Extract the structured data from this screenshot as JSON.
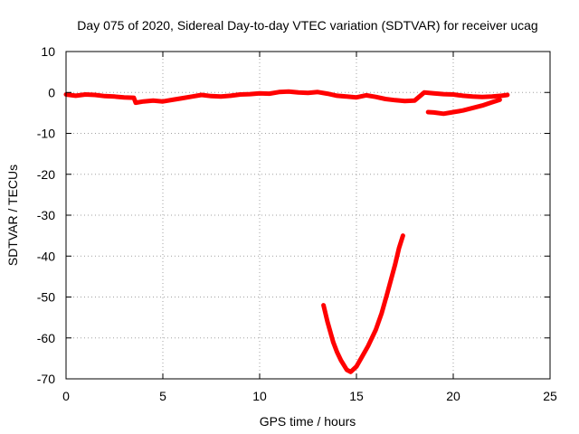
{
  "chart_data": {
    "type": "line",
    "title": "Day 075 of 2020, Sidereal Day-to-day VTEC variation (SDTVAR) for receiver ucag",
    "xlabel": "GPS time / hours",
    "ylabel": "SDTVAR / TECUs",
    "xlim": [
      0,
      25
    ],
    "ylim": [
      -70,
      10
    ],
    "xticks": [
      0,
      5,
      10,
      15,
      20,
      25
    ],
    "yticks": [
      -70,
      -60,
      -50,
      -40,
      -30,
      -20,
      -10,
      0,
      10
    ],
    "grid": true,
    "series": [
      {
        "name": "main-band",
        "color": "#ff0000",
        "x": [
          0.0,
          0.5,
          1.0,
          1.5,
          2.0,
          2.5,
          3.0,
          3.5,
          3.6,
          4.0,
          4.5,
          5.0,
          5.5,
          6.0,
          6.5,
          7.0,
          7.5,
          8.0,
          8.5,
          9.0,
          9.5,
          10.0,
          10.5,
          11.0,
          11.5,
          12.0,
          12.5,
          13.0,
          13.5,
          14.0,
          14.5,
          15.0,
          15.5,
          16.0,
          16.5,
          17.0,
          17.5,
          18.0,
          18.5,
          19.0,
          19.5,
          20.0,
          20.5,
          21.0,
          21.5,
          22.0,
          22.5,
          22.8
        ],
        "y": [
          -0.5,
          -0.8,
          -0.5,
          -0.6,
          -0.9,
          -1.0,
          -1.2,
          -1.3,
          -2.5,
          -2.2,
          -2.0,
          -2.2,
          -1.8,
          -1.4,
          -1.0,
          -0.6,
          -0.9,
          -1.0,
          -0.8,
          -0.5,
          -0.4,
          -0.2,
          -0.3,
          0.1,
          0.2,
          0.0,
          -0.1,
          0.1,
          -0.3,
          -0.8,
          -1.0,
          -1.2,
          -0.7,
          -1.1,
          -1.6,
          -1.9,
          -2.1,
          -2.0,
          0.0,
          -0.2,
          -0.4,
          -0.5,
          -0.8,
          -1.0,
          -1.1,
          -1.0,
          -0.8,
          -0.6
        ]
      },
      {
        "name": "lower-band",
        "color": "#ff0000",
        "x": [
          18.7,
          19.0,
          19.5,
          20.0,
          20.5,
          21.0,
          21.5,
          22.0,
          22.4
        ],
        "y": [
          -4.8,
          -4.9,
          -5.2,
          -4.8,
          -4.4,
          -3.8,
          -3.2,
          -2.4,
          -1.8
        ]
      },
      {
        "name": "v-dip",
        "color": "#ff0000",
        "x": [
          13.3,
          13.5,
          13.8,
          14.0,
          14.2,
          14.5,
          14.7,
          15.0,
          15.3,
          15.6,
          16.0,
          16.3,
          16.6,
          17.0,
          17.2,
          17.4
        ],
        "y": [
          -52.0,
          -56.0,
          -61.0,
          -63.5,
          -65.5,
          -67.8,
          -68.3,
          -67.0,
          -64.5,
          -62.0,
          -58.0,
          -54.0,
          -49.0,
          -42.0,
          -38.0,
          -35.0
        ]
      }
    ]
  }
}
